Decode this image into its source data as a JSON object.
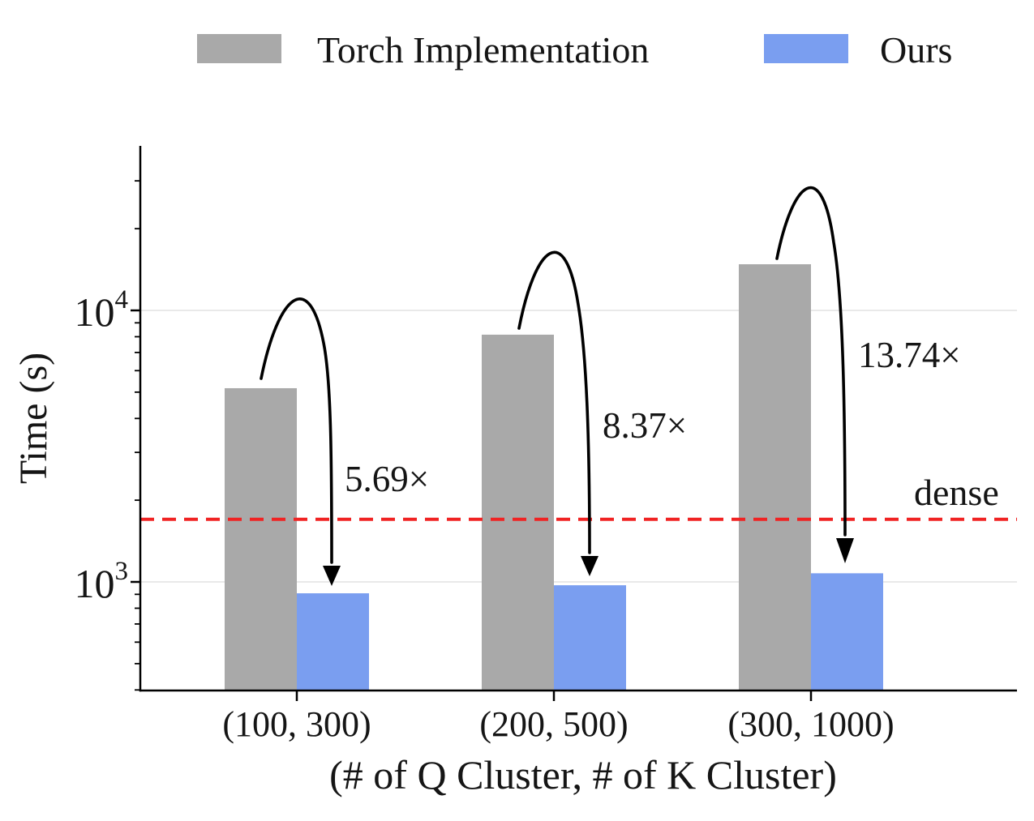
{
  "legend": {
    "items": [
      {
        "label": "Torch Implementation",
        "color": "#a9a9a9"
      },
      {
        "label": "Ours",
        "color": "#7a9ef0"
      }
    ]
  },
  "y_axis": {
    "label": "Time (s)",
    "scale": "log",
    "ticks": [
      {
        "base": "10",
        "exp": "4"
      },
      {
        "base": "10",
        "exp": "3"
      }
    ]
  },
  "x_axis": {
    "label": "(# of Q Cluster, # of K Cluster)",
    "categories": [
      "(100, 300)",
      "(200, 500)",
      "(300, 1000)"
    ]
  },
  "annotations": {
    "speedups": [
      "5.69×",
      "8.37×",
      "13.74×"
    ],
    "dense_label": "dense"
  },
  "chart_data": {
    "type": "bar",
    "title": "",
    "xlabel": "(# of Q Cluster, # of K Cluster)",
    "ylabel": "Time (s)",
    "yscale": "log",
    "ylim": [
      400,
      40000
    ],
    "grid": "horizontal-major",
    "legend_position": "top",
    "categories": [
      "(100, 300)",
      "(200, 500)",
      "(300, 1000)"
    ],
    "series": [
      {
        "name": "Torch Implementation",
        "color": "#a9a9a9",
        "values": [
          5170,
          8140,
          14790
        ]
      },
      {
        "name": "Ours",
        "color": "#7a9ef0",
        "values": [
          908,
          972,
          1076
        ]
      }
    ],
    "speedup_labels": [
      "5.69×",
      "8.37×",
      "13.74×"
    ],
    "dense_line": {
      "value": 1700,
      "label": "dense",
      "color": "#f02323",
      "style": "dashed"
    },
    "y_major_ticks": [
      10000,
      1000
    ],
    "y_minor_ticks": [
      400,
      500,
      600,
      700,
      800,
      900,
      2000,
      3000,
      4000,
      5000,
      6000,
      7000,
      8000,
      9000,
      20000,
      30000
    ]
  }
}
